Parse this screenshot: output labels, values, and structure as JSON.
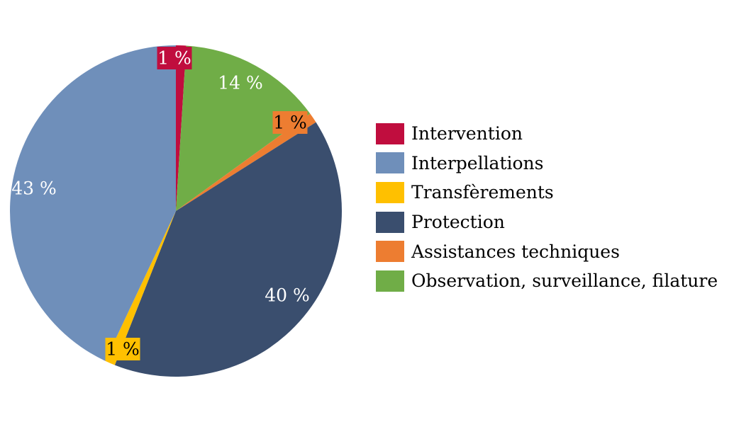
{
  "chart_data": {
    "type": "pie",
    "title": "",
    "slices": [
      {
        "label": "Intervention",
        "value": 1,
        "display": "1 %",
        "color": "#C00D3E"
      },
      {
        "label": "Observation, surveillance, filature",
        "value": 14,
        "display": "14 %",
        "color": "#70AD47"
      },
      {
        "label": "Assistances techniques",
        "value": 1,
        "display": "1 %",
        "color": "#ED7D31"
      },
      {
        "label": "Protection",
        "value": 40,
        "display": "40 %",
        "color": "#3A4E6E"
      },
      {
        "label": "Transfèrements",
        "value": 1,
        "display": "1 %",
        "color": "#FFC000"
      },
      {
        "label": "Interpellations",
        "value": 43,
        "display": "43 %",
        "color": "#6F8FBA"
      }
    ],
    "legend": {
      "placement": "right",
      "entries": [
        {
          "label": "Intervention",
          "color": "#C00D3E"
        },
        {
          "label": "Interpellations",
          "color": "#6F8FBA"
        },
        {
          "label": "Transfèrements",
          "color": "#FFC000"
        },
        {
          "label": "Protection",
          "color": "#3A4E6E"
        },
        {
          "label": "Assistances techniques",
          "color": "#ED7D31"
        },
        {
          "label": "Observation, surveillance, filature",
          "color": "#70AD47"
        }
      ]
    }
  }
}
